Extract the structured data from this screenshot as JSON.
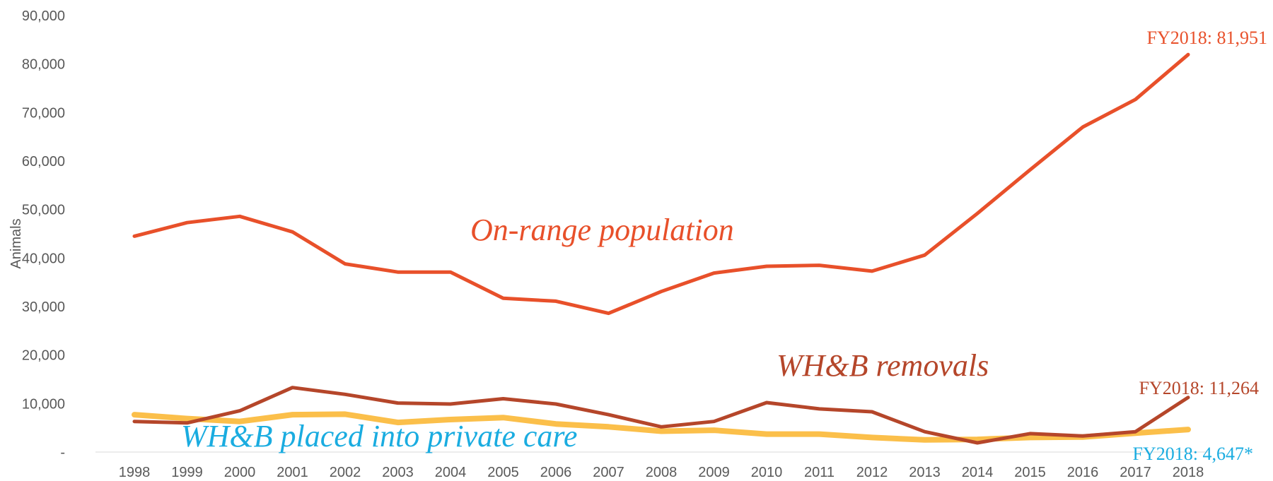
{
  "chart_data": {
    "type": "line",
    "title": "",
    "xlabel": "",
    "ylabel": "Animals",
    "ylim": [
      0,
      90000
    ],
    "y_ticks": [
      0,
      10000,
      20000,
      30000,
      40000,
      50000,
      60000,
      70000,
      80000,
      90000
    ],
    "y_tick_labels": [
      "-",
      "10,000",
      "20,000",
      "30,000",
      "40,000",
      "50,000",
      "60,000",
      "70,000",
      "80,000",
      "90,000"
    ],
    "grid": false,
    "x": [
      "1998",
      "1999",
      "2000",
      "2001",
      "2002",
      "2003",
      "2004",
      "2005",
      "2006",
      "2007",
      "2008",
      "2009",
      "2010",
      "2011",
      "2012",
      "2013",
      "2014",
      "2015",
      "2016",
      "2017",
      "2018"
    ],
    "series": [
      {
        "name": "On-range population",
        "color": "#E8502A",
        "values": [
          44500,
          47300,
          48600,
          45400,
          38800,
          37100,
          37100,
          31700,
          31100,
          28600,
          33100,
          36900,
          38300,
          38500,
          37300,
          40600,
          49200,
          58200,
          67000,
          72700,
          81951
        ]
      },
      {
        "name": "WH&B removals",
        "color": "#B5462A",
        "values": [
          6300,
          6000,
          8500,
          13300,
          11900,
          10100,
          9900,
          11000,
          9900,
          7700,
          5200,
          6300,
          10200,
          8900,
          8300,
          4200,
          1900,
          3800,
          3300,
          4200,
          11264
        ]
      },
      {
        "name": "WH&B placed into private care",
        "color": "#FBBF4A",
        "values": [
          7700,
          6900,
          6300,
          7700,
          7800,
          6100,
          6700,
          7100,
          5800,
          5200,
          4300,
          4500,
          3700,
          3700,
          3000,
          2500,
          2600,
          3000,
          3100,
          3900,
          4647
        ]
      }
    ],
    "annotations": [
      {
        "text": "On-range population",
        "color": "#E8502A"
      },
      {
        "text": "WH&B removals",
        "color": "#B5462A"
      },
      {
        "text": "WH&B placed into private care",
        "color": "#1AACE0"
      },
      {
        "text": "FY2018: 81,951",
        "color": "#E8502A"
      },
      {
        "text": "FY2018: 11,264",
        "color": "#B5462A"
      },
      {
        "text": "FY2018: 4,647*",
        "color": "#1AACE0"
      }
    ]
  }
}
